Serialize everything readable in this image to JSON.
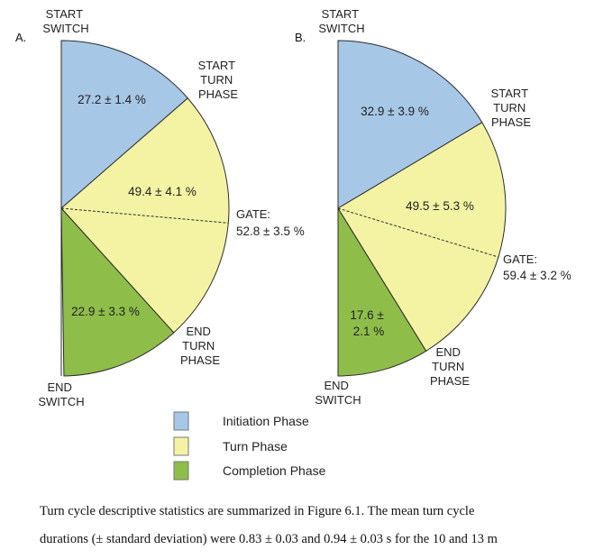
{
  "chart_data": [
    {
      "type": "pie",
      "panel": "A.",
      "slices": [
        {
          "phase": "Initiation Phase",
          "value": 27.2,
          "label": "27.2 ± 1.4 %"
        },
        {
          "phase": "Turn Phase",
          "value": 49.4,
          "label": "49.4 ± 4.1 %"
        },
        {
          "phase": "Completion Phase",
          "value": 22.9,
          "label": "22.9 ± 3.3 %"
        }
      ],
      "gate": {
        "value": 52.8,
        "label_lines": [
          "GATE:",
          "52.8 ± 3.5 %"
        ]
      },
      "markers": {
        "start_switch": [
          "START",
          "SWITCH"
        ],
        "start_turn_phase": [
          "START",
          "TURN",
          "PHASE"
        ],
        "end_turn_phase": [
          "END",
          "TURN",
          "PHASE"
        ],
        "end_switch": [
          "END",
          "SWITCH"
        ]
      }
    },
    {
      "type": "pie",
      "panel": "B.",
      "slices": [
        {
          "phase": "Initiation Phase",
          "value": 32.9,
          "label": "32.9 ± 3.9 %"
        },
        {
          "phase": "Turn Phase",
          "value": 49.5,
          "label": "49.5 ± 5.3 %"
        },
        {
          "phase": "Completion Phase",
          "value": 17.6,
          "label_lines": [
            "17.6 ±",
            "2.1 %"
          ]
        }
      ],
      "gate": {
        "value": 59.4,
        "label_lines": [
          "GATE:",
          "59.4 ± 3.2 %"
        ]
      },
      "markers": {
        "start_switch": [
          "START",
          "SWITCH"
        ],
        "start_turn_phase": [
          "START",
          "TURN",
          "PHASE"
        ],
        "end_turn_phase": [
          "END",
          "TURN",
          "PHASE"
        ],
        "end_switch": [
          "END",
          "SWITCH"
        ]
      }
    }
  ],
  "legend": [
    {
      "label": "Initiation Phase",
      "color": "#a7c7e7"
    },
    {
      "label": "Turn Phase",
      "color": "#f4f3a4"
    },
    {
      "label": "Completion Phase",
      "color": "#8fbd4a"
    }
  ],
  "caption": {
    "line1": "Turn cycle descriptive statistics are summarized in Figure 6.1. The mean turn cycle",
    "line2": "durations (± standard deviation) were 0.83 ± 0.03 and 0.94 ± 0.03 s for the 10 and 13 m"
  }
}
